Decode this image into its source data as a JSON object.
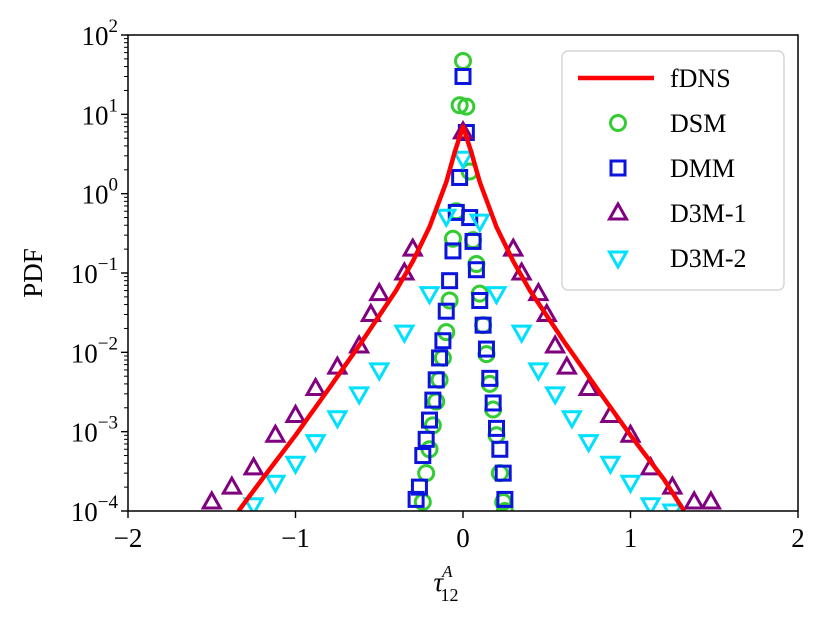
{
  "chart_data": {
    "type": "scatter",
    "title": "",
    "xlabel": "τ",
    "xlabel_sup": "A",
    "xlabel_sub": "12",
    "ylabel": "PDF",
    "xlim": [
      -2,
      2
    ],
    "ylim_log10": [
      -4,
      2
    ],
    "yscale": "log",
    "legend_position": "top-right",
    "x_ticks": [
      {
        "value": -2,
        "label": "−2"
      },
      {
        "value": -1,
        "label": "−1"
      },
      {
        "value": 0,
        "label": "0"
      },
      {
        "value": 1,
        "label": "1"
      },
      {
        "value": 2,
        "label": "2"
      }
    ],
    "y_ticks": [
      {
        "exp": 2,
        "base": "10",
        "sup": "2"
      },
      {
        "exp": 1,
        "base": "10",
        "sup": "1"
      },
      {
        "exp": 0,
        "base": "10",
        "sup": "0"
      },
      {
        "exp": -1,
        "base": "10",
        "sup": "−1"
      },
      {
        "exp": -2,
        "base": "10",
        "sup": "−2"
      },
      {
        "exp": -3,
        "base": "10",
        "sup": "−3"
      },
      {
        "exp": -4,
        "base": "10",
        "sup": "−4"
      }
    ],
    "series": [
      {
        "name": "fDNS",
        "marker": "line",
        "color": "#ff0000",
        "x": [
          -1.34,
          -1.2,
          -1.0,
          -0.8,
          -0.6,
          -0.4,
          -0.3,
          -0.2,
          -0.1,
          -0.05,
          0.0,
          0.05,
          0.1,
          0.2,
          0.3,
          0.4,
          0.6,
          0.8,
          1.0,
          1.2,
          1.32
        ],
        "y": [
          0.0001,
          0.00025,
          0.0009,
          0.0035,
          0.014,
          0.06,
          0.14,
          0.38,
          1.4,
          3.3,
          7.0,
          3.3,
          1.4,
          0.38,
          0.14,
          0.06,
          0.014,
          0.0035,
          0.0009,
          0.00025,
          0.0001
        ]
      },
      {
        "name": "DSM",
        "marker": "circle",
        "color": "#33cc33",
        "x": [
          -0.24,
          -0.22,
          -0.2,
          -0.18,
          -0.16,
          -0.14,
          -0.12,
          -0.1,
          -0.08,
          -0.06,
          -0.04,
          -0.02,
          0.0,
          0.02,
          0.04,
          0.06,
          0.08,
          0.1,
          0.12,
          0.14,
          0.16,
          0.18,
          0.2,
          0.22,
          0.24,
          0.25
        ],
        "y": [
          0.00013,
          0.0003,
          0.0006,
          0.0012,
          0.0024,
          0.0045,
          0.0085,
          0.018,
          0.045,
          0.27,
          0.6,
          13.0,
          47.0,
          12.5,
          1.9,
          0.26,
          0.13,
          0.055,
          0.022,
          0.0095,
          0.004,
          0.0019,
          0.0009,
          0.0003,
          0.00013,
          0.0001
        ]
      },
      {
        "name": "DMM",
        "marker": "square",
        "color": "#0a14dc",
        "x": [
          -0.28,
          -0.26,
          -0.24,
          -0.22,
          -0.2,
          -0.18,
          -0.16,
          -0.14,
          -0.12,
          -0.1,
          -0.08,
          -0.06,
          -0.04,
          -0.02,
          0.0,
          0.02,
          0.04,
          0.06,
          0.08,
          0.1,
          0.12,
          0.14,
          0.16,
          0.18,
          0.2,
          0.22,
          0.24,
          0.25
        ],
        "y": [
          0.00014,
          0.0002,
          0.0005,
          0.0008,
          0.0014,
          0.0025,
          0.0045,
          0.0085,
          0.014,
          0.033,
          0.08,
          0.19,
          0.58,
          1.6,
          30.0,
          5.9,
          0.5,
          0.25,
          0.11,
          0.045,
          0.022,
          0.011,
          0.0047,
          0.0023,
          0.0011,
          0.0006,
          0.0003,
          0.00014
        ]
      },
      {
        "name": "D3M-1",
        "marker": "triangle-up",
        "color": "#800080",
        "x": [
          -1.5,
          -1.38,
          -1.25,
          -1.12,
          -1.0,
          -0.88,
          -0.75,
          -0.62,
          -0.55,
          -0.5,
          -0.35,
          -0.3,
          0.0,
          0.3,
          0.35,
          0.45,
          0.5,
          0.55,
          0.62,
          0.75,
          0.88,
          1.0,
          1.12,
          1.25,
          1.38,
          1.48
        ],
        "y": [
          0.00013,
          0.0002,
          0.00035,
          0.0009,
          0.0016,
          0.0035,
          0.0065,
          0.012,
          0.03,
          0.055,
          0.1,
          0.2,
          6.0,
          0.2,
          0.1,
          0.055,
          0.03,
          0.012,
          0.0065,
          0.0035,
          0.0016,
          0.0009,
          0.00035,
          0.0002,
          0.00013,
          0.00013
        ]
      },
      {
        "name": "D3M-2",
        "marker": "triangle-down",
        "color": "#00e0ff",
        "x": [
          -1.25,
          -1.12,
          -1.0,
          -0.88,
          -0.75,
          -0.62,
          -0.5,
          -0.35,
          -0.2,
          -0.1,
          0.0,
          0.1,
          0.2,
          0.35,
          0.45,
          0.55,
          0.65,
          0.75,
          0.88,
          1.0,
          1.12,
          1.25
        ],
        "y": [
          0.00012,
          0.00023,
          0.0004,
          0.00075,
          0.0015,
          0.003,
          0.006,
          0.018,
          0.055,
          0.52,
          2.8,
          0.45,
          0.055,
          0.018,
          0.006,
          0.003,
          0.0015,
          0.00075,
          0.0004,
          0.00023,
          0.00012,
          0.0001
        ]
      }
    ]
  }
}
